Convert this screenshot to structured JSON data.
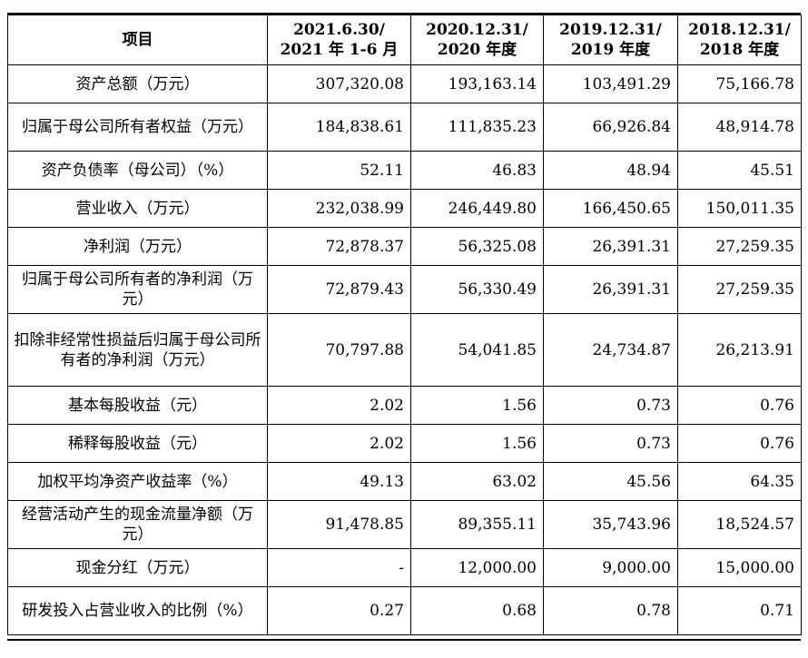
{
  "header": {
    "item": "项目",
    "periods": [
      {
        "line1": "2021.6.30/",
        "line2": "2021 年 1-6 月"
      },
      {
        "line1": "2020.12.31/",
        "line2": "2020 年度"
      },
      {
        "line1": "2019.12.31/",
        "line2": "2019 年度"
      },
      {
        "line1": "2018.12.31/",
        "line2": "2018 年度"
      }
    ]
  },
  "rows": [
    {
      "label": "资产总额（万元）",
      "values": [
        "307,320.08",
        "193,163.14",
        "103,491.29",
        "75,166.78"
      ]
    },
    {
      "label": "归属于母公司所有者权益（万元）",
      "values": [
        "184,838.61",
        "111,835.23",
        "66,926.84",
        "48,914.78"
      ]
    },
    {
      "label": "资产负债率（母公司）（%）",
      "values": [
        "52.11",
        "46.83",
        "48.94",
        "45.51"
      ]
    },
    {
      "label": "营业收入（万元）",
      "values": [
        "232,038.99",
        "246,449.80",
        "166,450.65",
        "150,011.35"
      ]
    },
    {
      "label": "净利润（万元）",
      "values": [
        "72,878.37",
        "56,325.08",
        "26,391.31",
        "27,259.35"
      ]
    },
    {
      "label": "归属于母公司所有者的净利润（万元）",
      "values": [
        "72,879.43",
        "56,330.49",
        "26,391.31",
        "27,259.35"
      ]
    },
    {
      "label": "扣除非经常性损益后归属于母公司所有者的净利润（万元）",
      "values": [
        "70,797.88",
        "54,041.85",
        "24,734.87",
        "26,213.91"
      ]
    },
    {
      "label": "基本每股收益（元）",
      "values": [
        "2.02",
        "1.56",
        "0.73",
        "0.76"
      ]
    },
    {
      "label": "稀释每股收益（元）",
      "values": [
        "2.02",
        "1.56",
        "0.73",
        "0.76"
      ]
    },
    {
      "label": "加权平均净资产收益率（%）",
      "values": [
        "49.13",
        "63.02",
        "45.56",
        "64.35"
      ]
    },
    {
      "label": "经营活动产生的现金流量净额（万元）",
      "values": [
        "91,478.85",
        "89,355.11",
        "35,743.96",
        "18,524.57"
      ]
    },
    {
      "label": "现金分红（万元）",
      "values": [
        "-",
        "12,000.00",
        "9,000.00",
        "15,000.00"
      ]
    },
    {
      "label": "研发投入占营业收入的比例（%）",
      "values": [
        "0.27",
        "0.68",
        "0.78",
        "0.71"
      ]
    }
  ]
}
